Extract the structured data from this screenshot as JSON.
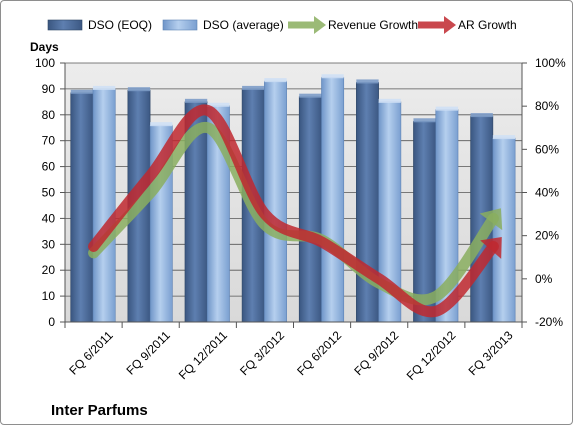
{
  "chart_data": {
    "type": "bar",
    "title": "Inter Parfums",
    "ylabel": "Days",
    "ylim": [
      0,
      100
    ],
    "y2lim": [
      -20,
      100
    ],
    "yticks": [
      "0",
      "10",
      "20",
      "30",
      "40",
      "50",
      "60",
      "70",
      "80",
      "90",
      "100"
    ],
    "y2ticks": [
      "-20%",
      "0%",
      "20%",
      "40%",
      "60%",
      "80%",
      "100%"
    ],
    "categories": [
      "FQ 6/2011",
      "FQ 9/2011",
      "FQ 12/2011",
      "FQ 3/2012",
      "FQ 6/2012",
      "FQ 9/2012",
      "FQ 12/2012",
      "FQ 3/2013"
    ],
    "series": [
      {
        "name": "DSO (EOQ)",
        "kind": "bar",
        "axis": "left",
        "values": [
          88.5,
          89.5,
          85,
          90,
          87,
          92.5,
          77.5,
          79.5
        ],
        "color": "#4f6f9c"
      },
      {
        "name": "DSO (average)",
        "kind": "bar",
        "axis": "left",
        "values": [
          90,
          76,
          83.5,
          93,
          94.5,
          85,
          82,
          71
        ],
        "color": "#8fb3df"
      },
      {
        "name": "Revenue Growth",
        "kind": "line",
        "axis": "right",
        "values": [
          12,
          40,
          70,
          25,
          18,
          -2,
          -8,
          28
        ],
        "color": "#8aae5f"
      },
      {
        "name": "AR Growth",
        "kind": "line",
        "axis": "right",
        "values": [
          15,
          48,
          78,
          30,
          17,
          0,
          -15,
          15
        ],
        "color": "#c0282f"
      }
    ],
    "legend": "top",
    "grid": true
  }
}
